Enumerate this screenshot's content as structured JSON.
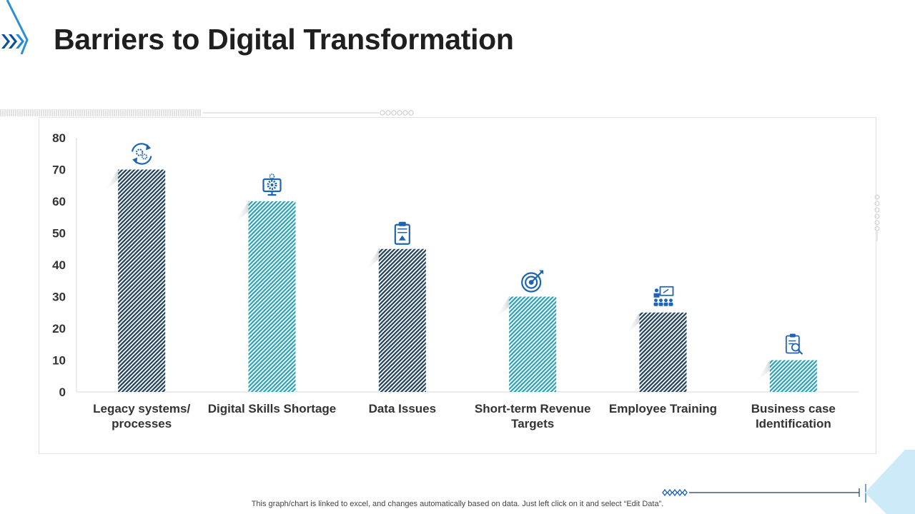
{
  "slide": {
    "title": "Barriers to Digital Transformation",
    "footnote": "This graph/chart is linked to excel,  and changes automatically based on data. Just left click on it and select “Edit Data”."
  },
  "colors": {
    "dark": "#1e3f5a",
    "teal": "#2aa1b5",
    "icon_blue": "#1e64b4",
    "light_blue": "#cdeaf8",
    "axis_text": "#333333"
  },
  "chart_data": {
    "type": "bar",
    "title": "",
    "xlabel": "",
    "ylabel": "",
    "ylim": [
      0,
      80
    ],
    "yticks": [
      0,
      10,
      20,
      30,
      40,
      50,
      60,
      70,
      80
    ],
    "categories": [
      [
        "Legacy systems/",
        "processes"
      ],
      [
        "Digital Skills Shortage"
      ],
      [
        "Data Issues"
      ],
      [
        "Short-term Revenue",
        "Targets"
      ],
      [
        "Employee Training"
      ],
      [
        "Business case",
        "Identification"
      ]
    ],
    "values": [
      70,
      60,
      45,
      30,
      25,
      10
    ],
    "bar_styles": [
      "dark",
      "teal",
      "dark",
      "teal",
      "dark",
      "teal"
    ],
    "bar_icons": [
      "refresh-gears-icon",
      "monitor-gear-icon",
      "clipboard-icon",
      "target-icon",
      "presentation-icon",
      "clipboard-search-icon"
    ],
    "grid": false,
    "legend": "none"
  }
}
